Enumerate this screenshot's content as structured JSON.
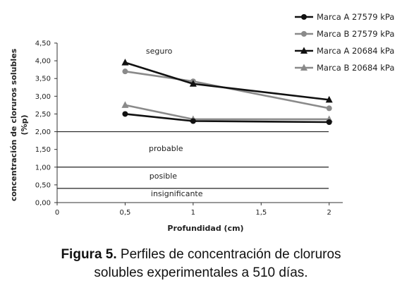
{
  "chart_data": {
    "type": "line",
    "xlabel": "Profundidad (cm)",
    "ylabel_lines": [
      "concentración de cloruros solubles",
      "(%p)"
    ],
    "xlim": [
      0,
      2.1
    ],
    "ylim": [
      0,
      4.5
    ],
    "x_ticks": [
      "0",
      "0,5",
      "1",
      "1,5",
      "2"
    ],
    "y_ticks": [
      "0,00",
      "0,50",
      "1,00",
      "1,50",
      "2,00",
      "2,50",
      "3,00",
      "3,50",
      "4,00",
      "4,50"
    ],
    "grid": false,
    "legend_position": "top-right",
    "series": [
      {
        "name": "Marca A 27579 kPa",
        "x": [
          0.5,
          1,
          2
        ],
        "y": [
          2.5,
          2.3,
          2.27
        ],
        "color": "#111111",
        "marker": "circle"
      },
      {
        "name": "Marca B 27579 kPa",
        "x": [
          0.5,
          1,
          2
        ],
        "y": [
          3.7,
          3.42,
          2.66
        ],
        "color": "#8a8a8a",
        "marker": "circle"
      },
      {
        "name": "Marca A 20684 kPa",
        "x": [
          0.5,
          1,
          2
        ],
        "y": [
          3.95,
          3.35,
          2.9
        ],
        "color": "#111111",
        "marker": "triangle"
      },
      {
        "name": "Marca B 20684 kPa",
        "x": [
          0.5,
          1,
          2
        ],
        "y": [
          2.75,
          2.35,
          2.35
        ],
        "color": "#8a8a8a",
        "marker": "triangle"
      }
    ],
    "threshold_lines": [
      2.0,
      1.0,
      0.4
    ],
    "zones": [
      {
        "label": "seguro",
        "x": 0.75,
        "y": 4.2
      },
      {
        "label": "probable",
        "x": 0.8,
        "y": 1.45
      },
      {
        "label": "posible",
        "x": 0.78,
        "y": 0.68
      },
      {
        "label": "insignificante",
        "x": 0.88,
        "y": 0.18
      }
    ]
  },
  "caption": {
    "figure_label": "Figura 5.",
    "line1_rest": " Perfiles de concentración de cloruros",
    "line2": "solubles experimentales a 510 días."
  }
}
